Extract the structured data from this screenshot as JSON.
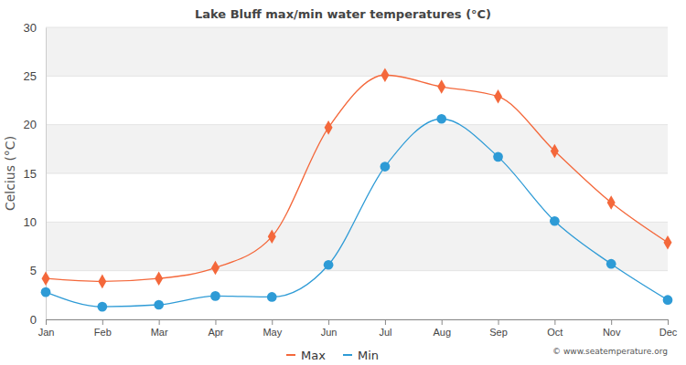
{
  "chart_data": {
    "type": "line",
    "title": "Lake Bluff max/min water temperatures (°C)",
    "y_label": "Celcius (°C)",
    "annotations": [
      "© www.seatemperature.org"
    ],
    "categories": [
      "Jan",
      "Feb",
      "Mar",
      "Apr",
      "May",
      "Jun",
      "Jul",
      "Aug",
      "Sep",
      "Oct",
      "Nov",
      "Dec"
    ],
    "series": [
      {
        "name": "Max",
        "color": "#f4683b",
        "marker": "diamond",
        "values": [
          4.2,
          3.9,
          4.2,
          5.3,
          8.5,
          19.7,
          25.1,
          23.9,
          22.9,
          17.3,
          12.0,
          7.9
        ]
      },
      {
        "name": "Min",
        "color": "#2e9bd6",
        "marker": "circle",
        "values": [
          2.8,
          1.3,
          1.5,
          2.4,
          2.3,
          5.6,
          15.7,
          20.6,
          16.7,
          10.1,
          5.7,
          2.0
        ]
      }
    ],
    "ylim": [
      0,
      30
    ],
    "yticks": [
      0,
      5,
      10,
      15,
      20,
      25,
      30
    ],
    "grid": true,
    "legend": "bottom"
  }
}
